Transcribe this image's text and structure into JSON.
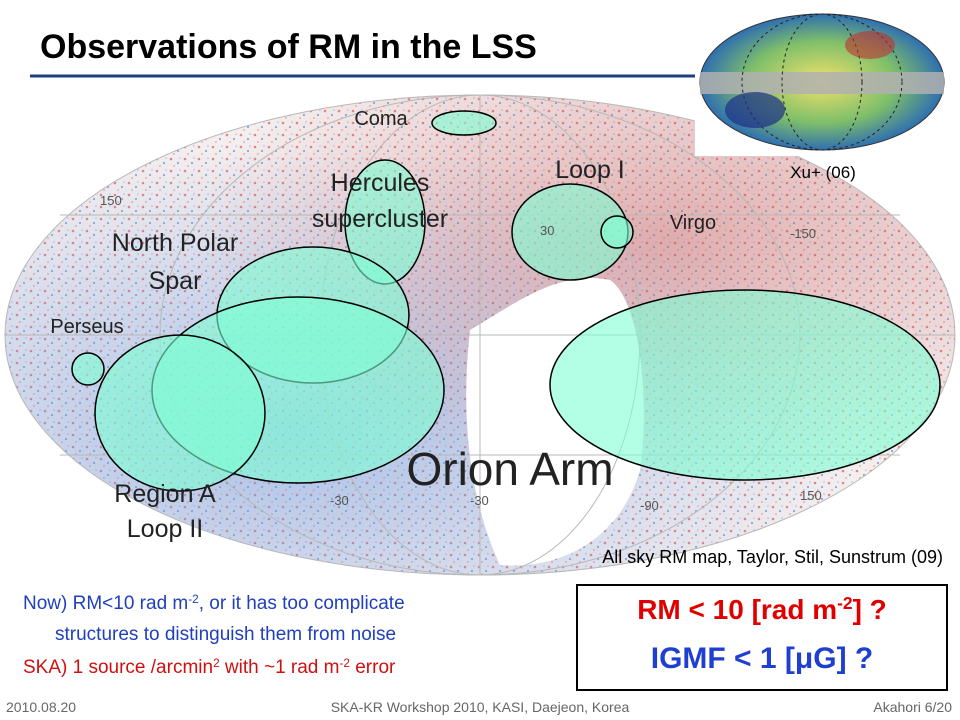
{
  "header": {
    "title": "Observations of RM in the LSS"
  },
  "map": {
    "caption": "All sky RM map, Taylor, Stil, Sunstrum (09)",
    "inset_caption": "Xu+ (06)",
    "axis_labels": [
      "150",
      "30",
      "-30",
      "-30",
      "-90",
      "-150",
      "150"
    ],
    "regions": [
      {
        "lines": [
          "Coma"
        ]
      },
      {
        "lines": [
          "Hercules",
          "supercluster"
        ]
      },
      {
        "lines": [
          "Loop I"
        ]
      },
      {
        "lines": [
          "Virgo"
        ]
      },
      {
        "lines": [
          "North Polar",
          "Spar"
        ]
      },
      {
        "lines": [
          "Perseus"
        ]
      },
      {
        "lines": [
          "Orion Arm"
        ]
      },
      {
        "lines": [
          "Region A",
          "Loop II"
        ]
      }
    ]
  },
  "notes": [
    [
      {
        "text": "Now) RM<10 rad m"
      },
      {
        "sup": "-2"
      },
      {
        "text": ", or it has too complicate"
      }
    ],
    [
      {
        "text": "structures to distinguish them from noise"
      }
    ],
    [
      {
        "text": "SKA) 1 source /arcmin"
      },
      {
        "sup": "2"
      },
      {
        "text": "  with ~1 rad m"
      },
      {
        "sup": "-2"
      },
      {
        "text": " error"
      }
    ]
  ],
  "box": [
    [
      {
        "text": "RM < 10 [rad m"
      },
      {
        "sup": "-2"
      },
      {
        "text": "] ?"
      }
    ],
    [
      {
        "text": "IGMF  < 1 [μG] ?"
      }
    ]
  ],
  "footer": {
    "date": "2010.08.20",
    "event": "SKA-KR Workshop 2010, KASI, Daejeon, Korea",
    "page": "Akahori 6/20"
  }
}
